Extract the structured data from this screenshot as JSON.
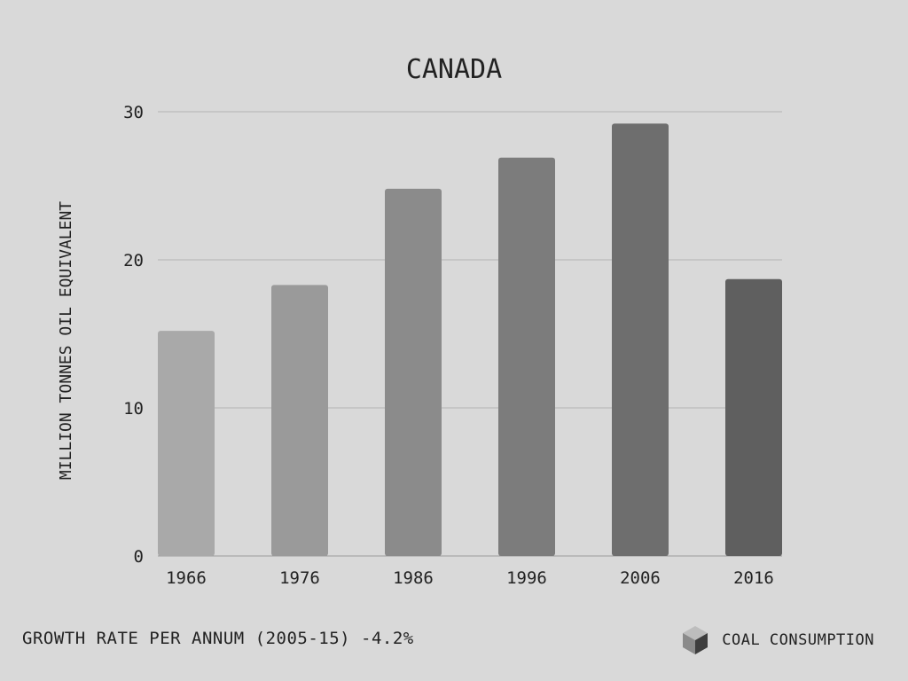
{
  "chart_data": {
    "type": "bar",
    "title": "CANADA",
    "xlabel": "",
    "ylabel": "MILLION TONNES OIL EQUIVALENT",
    "categories": [
      "1966",
      "1976",
      "1986",
      "1996",
      "2006",
      "2016"
    ],
    "values": [
      15.2,
      18.3,
      24.8,
      26.9,
      29.2,
      18.7
    ],
    "ylim": [
      0,
      30
    ],
    "yticks": [
      "0",
      "10",
      "20",
      "30"
    ],
    "grid": true,
    "colors": [
      "#a9a9a9",
      "#9a9a9a",
      "#8b8b8b",
      "#7c7c7c",
      "#6e6e6e",
      "#5f5f5f"
    ]
  },
  "footer": {
    "growth_rate": "GROWTH RATE PER ANNUM (2005-15) -4.2%",
    "legend_label": "COAL CONSUMPTION",
    "legend_icon": "cube-icon"
  }
}
